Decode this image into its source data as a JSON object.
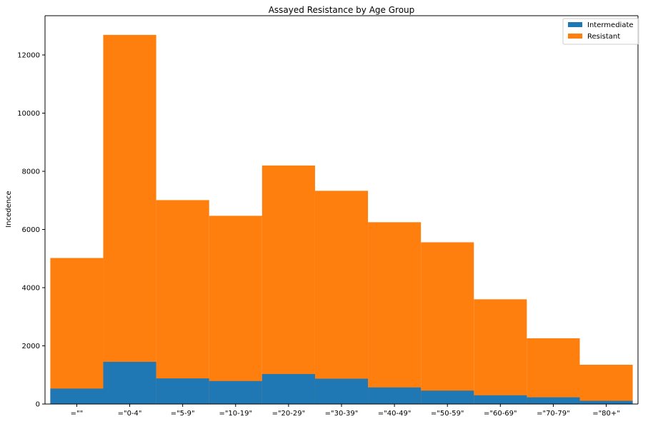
{
  "chart_data": {
    "type": "bar",
    "stacked": false,
    "title": "Assayed Resistance by Age Group",
    "xlabel": "",
    "ylabel": "Incedence",
    "ylim": [
      0,
      13350
    ],
    "yticks": [
      0,
      2000,
      4000,
      6000,
      8000,
      10000,
      12000
    ],
    "ytick_labels": [
      "0",
      "2000",
      "4000",
      "6000",
      "8000",
      "10000",
      "12000"
    ],
    "categories": [
      "=\"\"",
      "=\"0-4\"",
      "=\"5-9\"",
      "=\"10-19\"",
      "=\"20-29\"",
      "=\"30-39\"",
      "=\"40-49\"",
      "=\"50-59\"",
      "=\"60-69\"",
      "=\"70-79\"",
      "=\"80+\""
    ],
    "series": [
      {
        "name": "Resistant",
        "color": "#ff7f0e",
        "values": [
          5020,
          12690,
          7010,
          6470,
          8200,
          7330,
          6250,
          5560,
          3600,
          2260,
          1350
        ]
      },
      {
        "name": "Intermediate",
        "color": "#1f77b4",
        "values": [
          530,
          1450,
          880,
          790,
          1030,
          870,
          570,
          460,
          300,
          230,
          110
        ]
      }
    ],
    "legend": {
      "position": "top-right",
      "entries": [
        {
          "label": "Intermediate",
          "color": "#1f77b4"
        },
        {
          "label": "Resistant",
          "color": "#ff7f0e"
        }
      ]
    },
    "grid": false
  }
}
